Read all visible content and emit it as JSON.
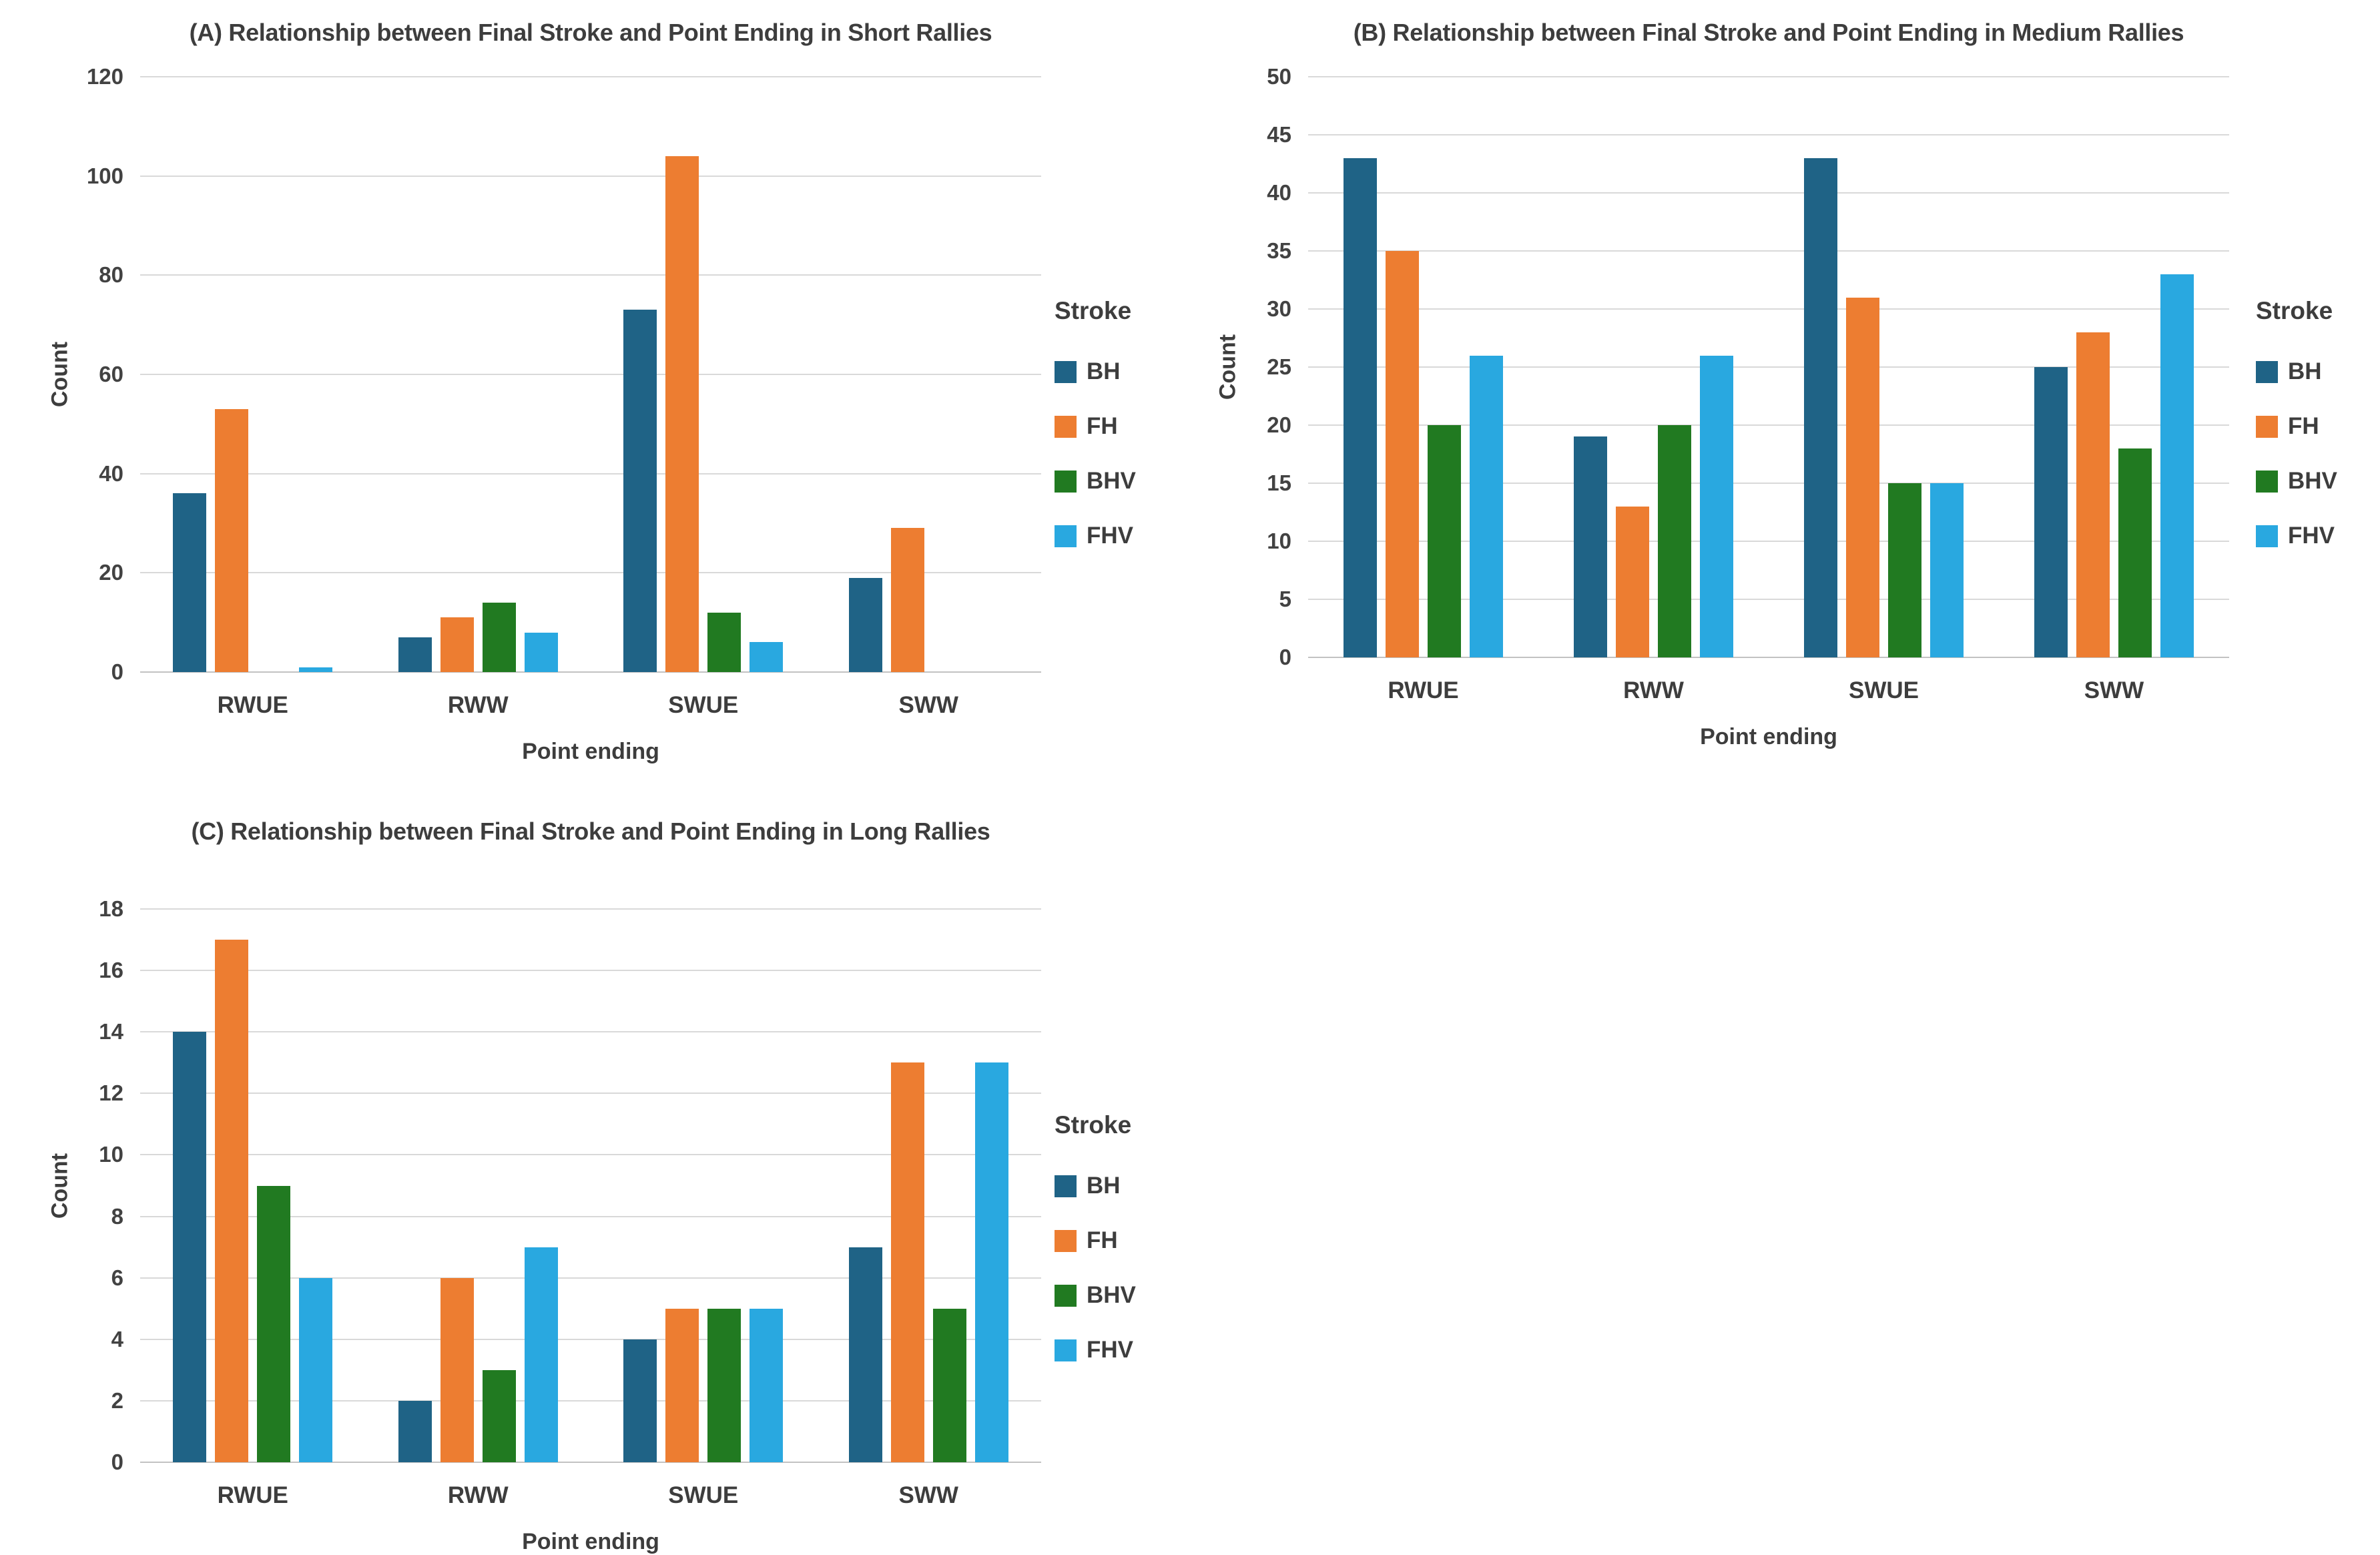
{
  "colors": {
    "BH": "#1f6386",
    "FH": "#ed7d31",
    "BHV": "#217a21",
    "FHV": "#29a8e0",
    "text": "#3f3f3f",
    "grid": "#d9d9d9",
    "axis_line": "#c2c2c2"
  },
  "legend": {
    "title": "Stroke",
    "items": [
      "BH",
      "FH",
      "BHV",
      "FHV"
    ]
  },
  "chart_data": [
    {
      "id": "A",
      "type": "bar",
      "title": "(A) Relationship between Final Stroke and Point Ending in Short Rallies",
      "xlabel": "Point ending",
      "ylabel": "Count",
      "categories": [
        "RWUE",
        "RWW",
        "SWUE",
        "SWW"
      ],
      "series": [
        {
          "name": "BH",
          "values": [
            36,
            7,
            73,
            19
          ]
        },
        {
          "name": "FH",
          "values": [
            53,
            11,
            104,
            29
          ]
        },
        {
          "name": "BHV",
          "values": [
            0,
            14,
            12,
            0
          ]
        },
        {
          "name": "FHV",
          "values": [
            1,
            8,
            6,
            0
          ]
        }
      ],
      "ylim": [
        0,
        120
      ],
      "ytick_step": 20,
      "grid": true,
      "legend_position": "right"
    },
    {
      "id": "B",
      "type": "bar",
      "title": "(B) Relationship between Final Stroke and Point Ending in Medium Rallies",
      "xlabel": "Point ending",
      "ylabel": "Count",
      "categories": [
        "RWUE",
        "RWW",
        "SWUE",
        "SWW"
      ],
      "series": [
        {
          "name": "BH",
          "values": [
            43,
            19,
            43,
            25
          ]
        },
        {
          "name": "FH",
          "values": [
            35,
            13,
            31,
            28
          ]
        },
        {
          "name": "BHV",
          "values": [
            20,
            20,
            15,
            18
          ]
        },
        {
          "name": "FHV",
          "values": [
            26,
            26,
            15,
            33
          ]
        }
      ],
      "ylim": [
        0,
        50
      ],
      "ytick_step": 5,
      "grid": true,
      "legend_position": "right"
    },
    {
      "id": "C",
      "type": "bar",
      "title": "(C) Relationship between Final Stroke and Point Ending in Long Rallies",
      "xlabel": "Point ending",
      "ylabel": "Count",
      "categories": [
        "RWUE",
        "RWW",
        "SWUE",
        "SWW"
      ],
      "series": [
        {
          "name": "BH",
          "values": [
            14,
            2,
            4,
            7
          ]
        },
        {
          "name": "FH",
          "values": [
            17,
            6,
            5,
            13
          ]
        },
        {
          "name": "BHV",
          "values": [
            9,
            3,
            5,
            5
          ]
        },
        {
          "name": "FHV",
          "values": [
            6,
            7,
            5,
            13
          ]
        }
      ],
      "ylim": [
        0,
        18
      ],
      "ytick_step": 2,
      "grid": true,
      "legend_position": "right"
    }
  ]
}
